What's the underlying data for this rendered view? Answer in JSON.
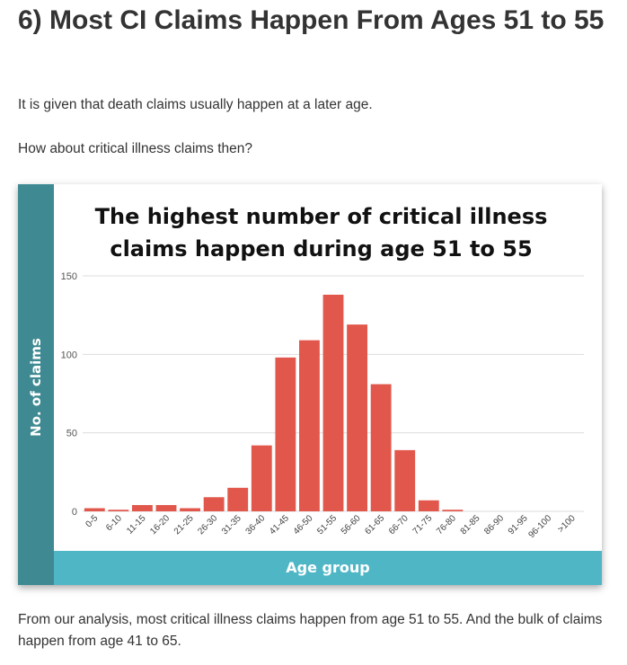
{
  "article": {
    "heading": "6) Most CI Claims Happen From Ages 51 to 55",
    "paragraph_1": "It is given that death claims usually happen at a later age.",
    "paragraph_2": "How about critical illness claims then?",
    "paragraph_3": "From our analysis, most critical illness claims happen from age 51 to 55. And the bulk of claims happen from age 41 to 65."
  },
  "colors": {
    "bar": "#e2574c",
    "y_banner": "#3f8a92",
    "x_banner": "#4fb6c6",
    "grid": "#dddddd"
  },
  "chart_data": {
    "type": "bar",
    "title": "The highest number of critical illness claims happen during age 51 to 55",
    "xlabel": "Age group",
    "ylabel": "No. of claims",
    "ylim": [
      0,
      150
    ],
    "yticks": [
      0,
      50,
      100,
      150
    ],
    "grid": true,
    "categories": [
      "0-5",
      "6-10",
      "11-15",
      "16-20",
      "21-25",
      "26-30",
      "31-35",
      "36-40",
      "41-45",
      "46-50",
      "51-55",
      "56-60",
      "61-65",
      "66-70",
      "71-75",
      "76-80",
      "81-85",
      "86-90",
      "91-95",
      "96-100",
      ">100"
    ],
    "values": [
      2,
      1,
      4,
      4,
      2,
      9,
      15,
      42,
      98,
      109,
      138,
      119,
      81,
      39,
      7,
      1,
      0,
      0,
      0,
      0,
      0
    ]
  }
}
